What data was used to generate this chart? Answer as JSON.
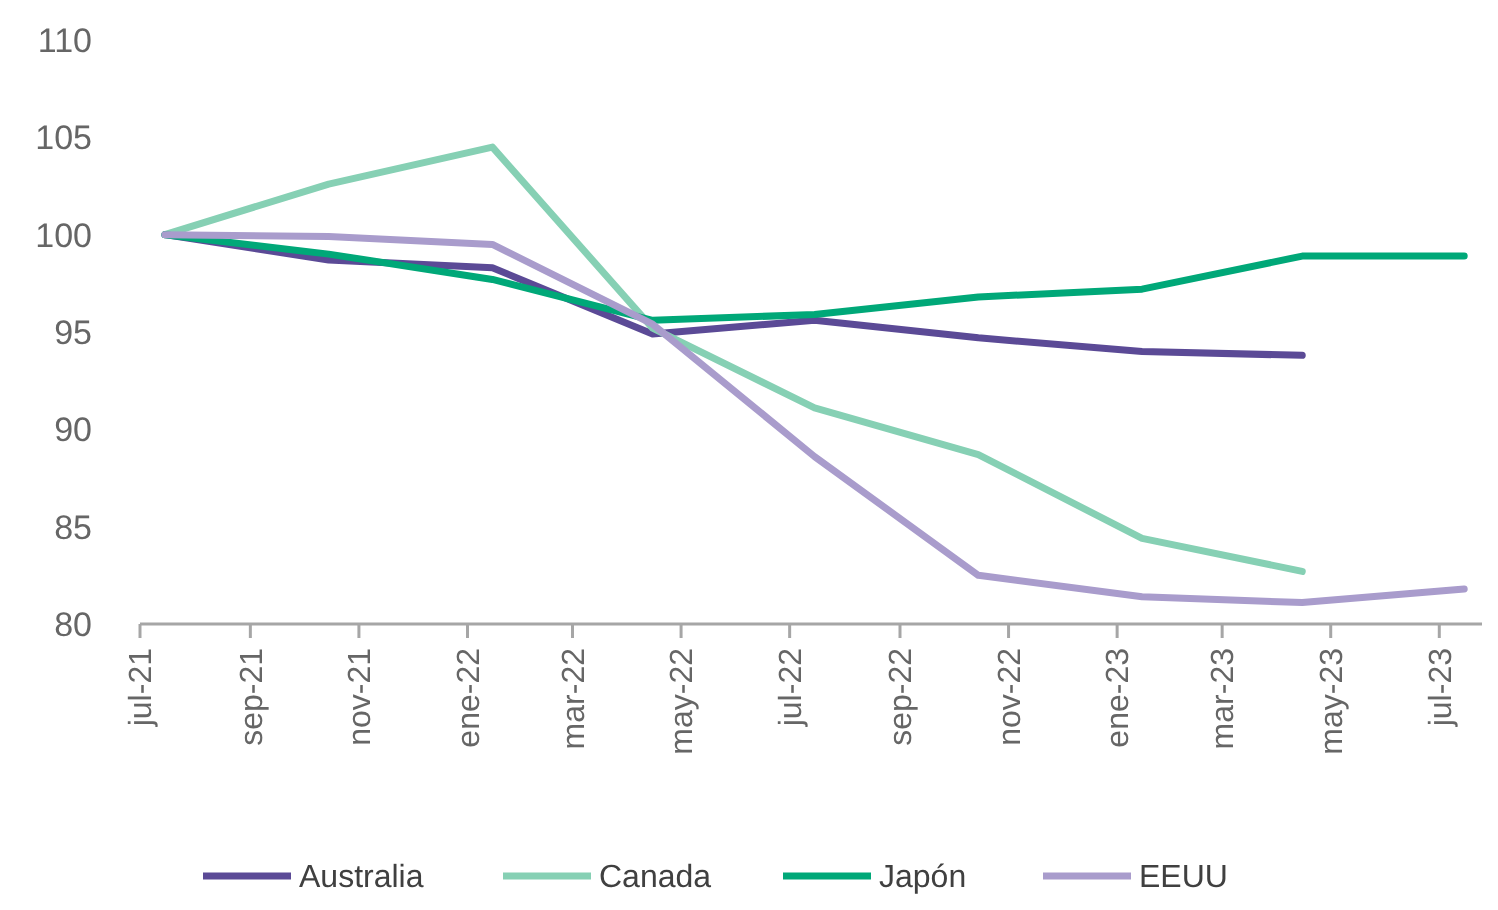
{
  "chart_data": {
    "type": "line",
    "x": [
      "2021-07-15",
      "2021-10-15",
      "2022-01-15",
      "2022-04-15",
      "2022-07-15",
      "2022-10-15",
      "2023-01-15",
      "2023-04-15",
      "2023-07-15"
    ],
    "series": [
      {
        "name": "Australia",
        "color": "#5b4a96",
        "values": [
          100,
          98.7,
          98.3,
          94.9,
          95.6,
          94.7,
          94.0,
          93.8,
          null
        ]
      },
      {
        "name": "Canada",
        "color": "#86d0b4",
        "values": [
          100,
          102.6,
          104.5,
          95.2,
          91.1,
          88.7,
          84.4,
          82.7,
          null
        ]
      },
      {
        "name": "Japón",
        "color": "#00a878",
        "values": [
          100,
          99.0,
          97.7,
          95.6,
          95.9,
          96.8,
          97.2,
          98.9,
          98.9
        ]
      },
      {
        "name": "EEUU",
        "color": "#a99ccc",
        "values": [
          100,
          99.9,
          99.5,
          95.4,
          88.6,
          82.5,
          81.4,
          81.1,
          81.8
        ]
      }
    ],
    "xlim": [
      "2021-07-01",
      "2023-07-25"
    ],
    "xticks": [
      {
        "value": "2021-07-01",
        "label": "jul-21"
      },
      {
        "value": "2021-09-01",
        "label": "sep-21"
      },
      {
        "value": "2021-11-01",
        "label": "nov-21"
      },
      {
        "value": "2022-01-01",
        "label": "ene-22"
      },
      {
        "value": "2022-03-01",
        "label": "mar-22"
      },
      {
        "value": "2022-05-01",
        "label": "may-22"
      },
      {
        "value": "2022-07-01",
        "label": "jul-22"
      },
      {
        "value": "2022-09-01",
        "label": "sep-22"
      },
      {
        "value": "2022-11-01",
        "label": "nov-22"
      },
      {
        "value": "2023-01-01",
        "label": "ene-23"
      },
      {
        "value": "2023-03-01",
        "label": "mar-23"
      },
      {
        "value": "2023-05-01",
        "label": "may-23"
      },
      {
        "value": "2023-07-01",
        "label": "jul-23"
      }
    ],
    "ylim": [
      80,
      110
    ],
    "yticks": [
      80,
      85,
      90,
      95,
      100,
      105,
      110
    ],
    "grid": false,
    "legend": "bottom",
    "marker": "none",
    "line_style": "solid"
  }
}
